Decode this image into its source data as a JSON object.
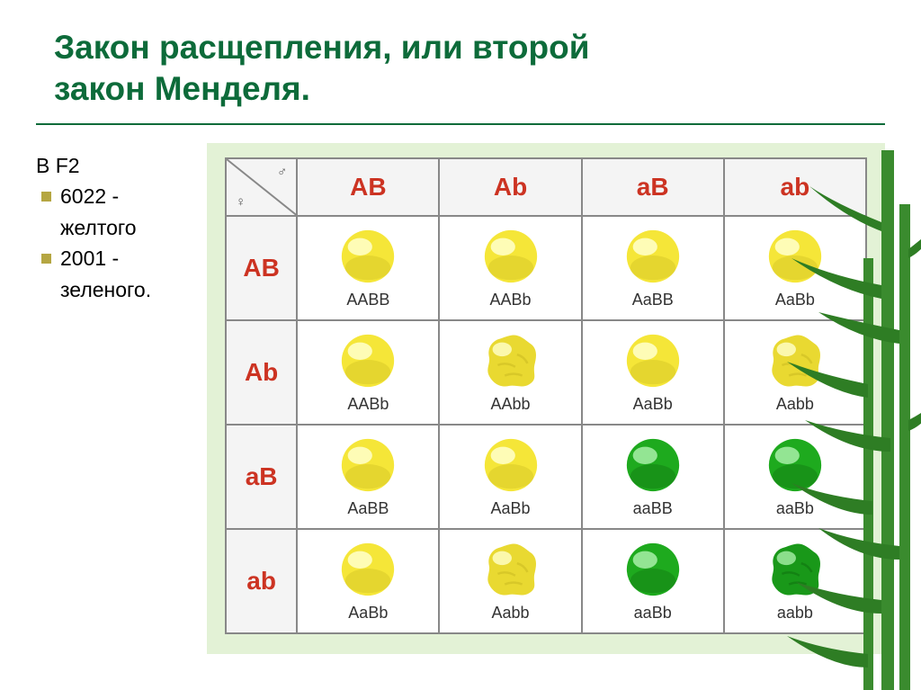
{
  "title_line1": "Закон расщепления, или второй",
  "title_line2": "закон Менделя.",
  "side": {
    "heading": "В F2",
    "item1_num": "6022 -",
    "item1_txt": "желтого",
    "item2_num": " 2001 -",
    "item2_txt": "зеленого."
  },
  "symbols": {
    "male": "♂",
    "female": "♀"
  },
  "gametes": {
    "AB": "AB",
    "Ab": "Ab",
    "aB": "aB",
    "ab": "ab"
  },
  "colors": {
    "title": "#0d6b3a",
    "header_text": "#cc3322",
    "genotype_text": "#333333",
    "cell_border": "#888888",
    "punnett_bg": "#e3f2d6",
    "slide_bg": "#ffffff",
    "bullet": "#b5a642",
    "yellow_fill": "#f5e638",
    "yellow_shadow": "#c8b820",
    "yellow_highlight": "#ffffcc",
    "green_fill": "#1eaa1e",
    "green_shadow": "#0d6b0d",
    "green_highlight": "#a8f0a8",
    "bamboo_stalk": "#3a8b2e",
    "bamboo_leaf": "#2e7d24"
  },
  "grid": [
    [
      {
        "g": "AABB",
        "color": "yellow",
        "shape": "smooth"
      },
      {
        "g": "AABb",
        "color": "yellow",
        "shape": "smooth"
      },
      {
        "g": "AaBB",
        "color": "yellow",
        "shape": "smooth"
      },
      {
        "g": "AaBb",
        "color": "yellow",
        "shape": "smooth"
      }
    ],
    [
      {
        "g": "AABb",
        "color": "yellow",
        "shape": "smooth"
      },
      {
        "g": "AAbb",
        "color": "yellow",
        "shape": "wrinkled"
      },
      {
        "g": "AaBb",
        "color": "yellow",
        "shape": "smooth"
      },
      {
        "g": "Aabb",
        "color": "yellow",
        "shape": "wrinkled"
      }
    ],
    [
      {
        "g": "AaBB",
        "color": "yellow",
        "shape": "smooth"
      },
      {
        "g": "AaBb",
        "color": "yellow",
        "shape": "smooth"
      },
      {
        "g": "aaBB",
        "color": "green",
        "shape": "smooth"
      },
      {
        "g": "aaBb",
        "color": "green",
        "shape": "smooth"
      }
    ],
    [
      {
        "g": "AaBb",
        "color": "yellow",
        "shape": "smooth"
      },
      {
        "g": "Aabb",
        "color": "yellow",
        "shape": "wrinkled"
      },
      {
        "g": "aaBb",
        "color": "green",
        "shape": "smooth"
      },
      {
        "g": "aabb",
        "color": "green",
        "shape": "wrinkled"
      }
    ]
  ]
}
